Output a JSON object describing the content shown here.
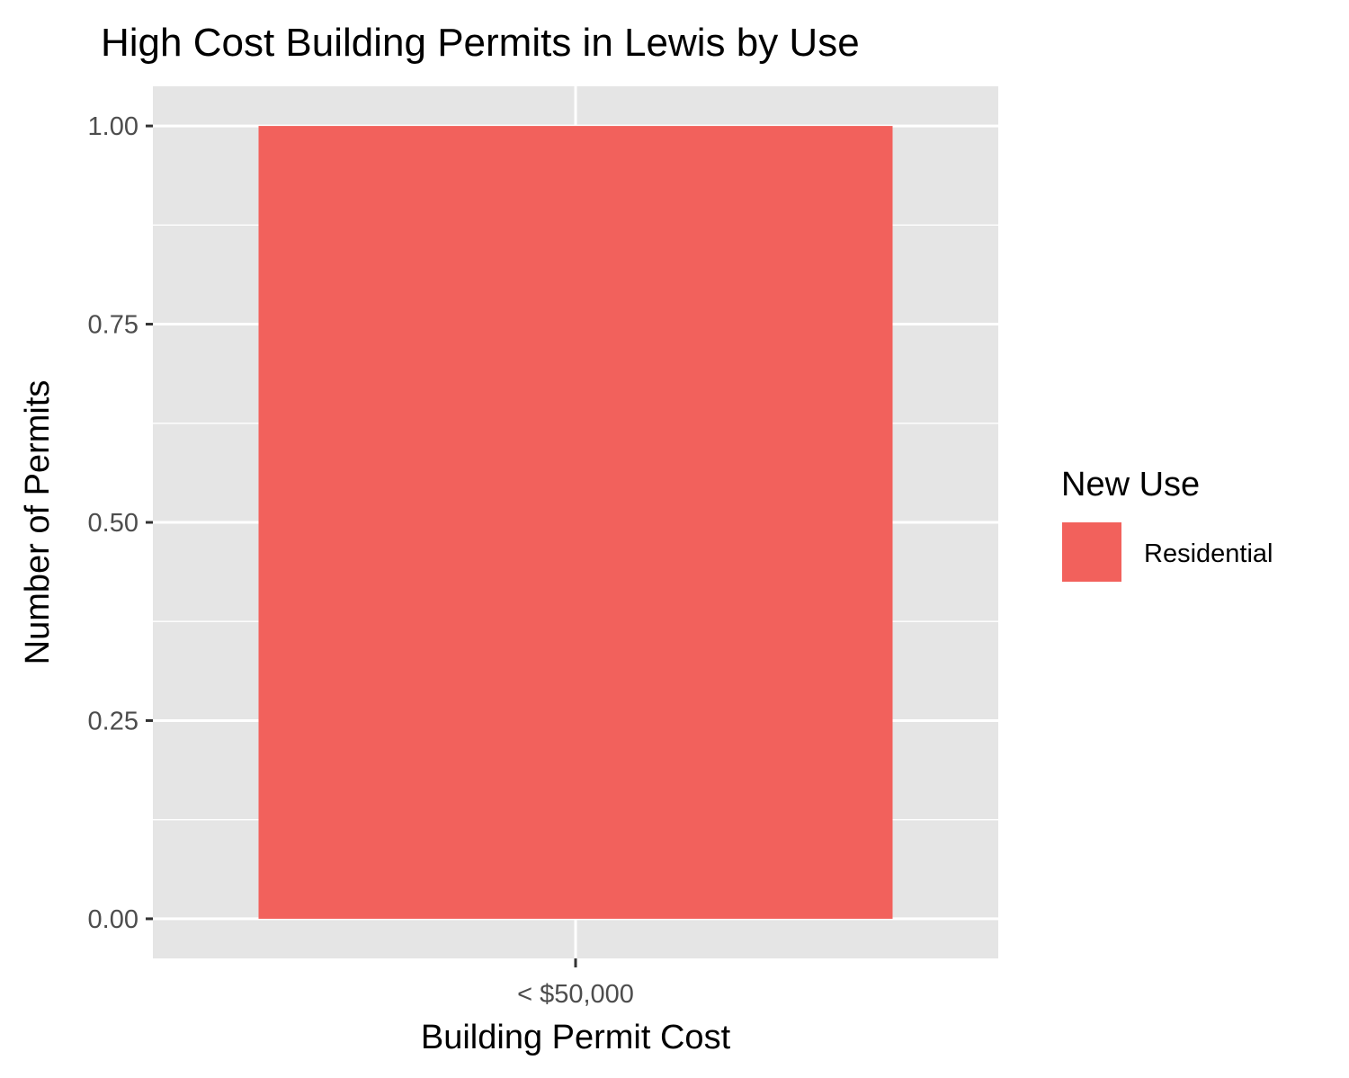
{
  "chart_data": {
    "type": "bar",
    "title": "High Cost Building Permits in Lewis by Use",
    "xlabel": "Building Permit Cost",
    "ylabel": "Number of Permits",
    "categories": [
      "< $50,000"
    ],
    "series": [
      {
        "name": "Residential",
        "values": [
          1
        ],
        "color": "#F2615C"
      }
    ],
    "ylim": [
      0,
      1.05
    ],
    "yticks": [
      0,
      0.25,
      0.5,
      0.75,
      1
    ],
    "ytick_labels": [
      "0.00",
      "0.25",
      "0.50",
      "0.75",
      "1.00"
    ],
    "grid": true,
    "legend": {
      "title": "New Use",
      "placement": "right"
    },
    "colors": {
      "panel": "#E5E5E5",
      "grid": "#FFFFFF",
      "tick": "#333333"
    }
  }
}
